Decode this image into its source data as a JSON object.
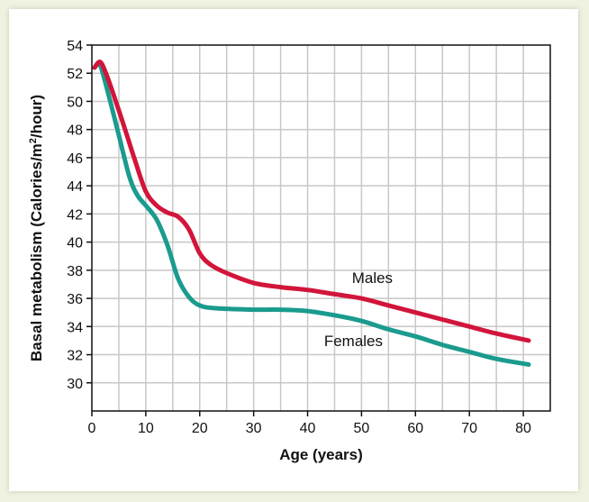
{
  "chart_data": {
    "type": "line",
    "xlabel": "Age (years)",
    "ylabel_parts": [
      "Basal metabolism (Calories/m",
      "2",
      "/hour)"
    ],
    "xlim": [
      0,
      85
    ],
    "ylim": [
      28,
      54
    ],
    "x_ticks": [
      0,
      10,
      20,
      30,
      40,
      50,
      60,
      70,
      80
    ],
    "y_ticks": [
      30,
      32,
      34,
      36,
      38,
      40,
      42,
      44,
      46,
      48,
      50,
      52,
      54
    ],
    "grid": true,
    "series": [
      {
        "name": "Males",
        "color": "#d2153a",
        "points": [
          [
            0.5,
            52.4
          ],
          [
            1.5,
            52.8
          ],
          [
            2.5,
            52.1
          ],
          [
            4,
            50.5
          ],
          [
            6,
            48.2
          ],
          [
            8,
            45.8
          ],
          [
            10,
            43.6
          ],
          [
            12,
            42.6
          ],
          [
            14,
            42.1
          ],
          [
            16,
            41.8
          ],
          [
            18,
            40.9
          ],
          [
            20,
            39.2
          ],
          [
            22,
            38.4
          ],
          [
            25,
            37.8
          ],
          [
            30,
            37.1
          ],
          [
            35,
            36.8
          ],
          [
            40,
            36.6
          ],
          [
            45,
            36.3
          ],
          [
            50,
            36.0
          ],
          [
            55,
            35.5
          ],
          [
            60,
            35.0
          ],
          [
            65,
            34.5
          ],
          [
            70,
            34.0
          ],
          [
            75,
            33.5
          ],
          [
            81,
            33.0
          ]
        ]
      },
      {
        "name": "Females",
        "color": "#1a9b8e",
        "points": [
          [
            0.5,
            52.4
          ],
          [
            1.5,
            52.6
          ],
          [
            3,
            50.6
          ],
          [
            5,
            47.6
          ],
          [
            7,
            44.6
          ],
          [
            8.5,
            43.3
          ],
          [
            10,
            42.6
          ],
          [
            12,
            41.6
          ],
          [
            14,
            39.8
          ],
          [
            16,
            37.4
          ],
          [
            18,
            36.1
          ],
          [
            20,
            35.5
          ],
          [
            23,
            35.3
          ],
          [
            30,
            35.2
          ],
          [
            35,
            35.2
          ],
          [
            40,
            35.1
          ],
          [
            45,
            34.8
          ],
          [
            50,
            34.4
          ],
          [
            55,
            33.8
          ],
          [
            60,
            33.3
          ],
          [
            65,
            32.7
          ],
          [
            70,
            32.2
          ],
          [
            75,
            31.7
          ],
          [
            81,
            31.3
          ]
        ]
      }
    ]
  }
}
